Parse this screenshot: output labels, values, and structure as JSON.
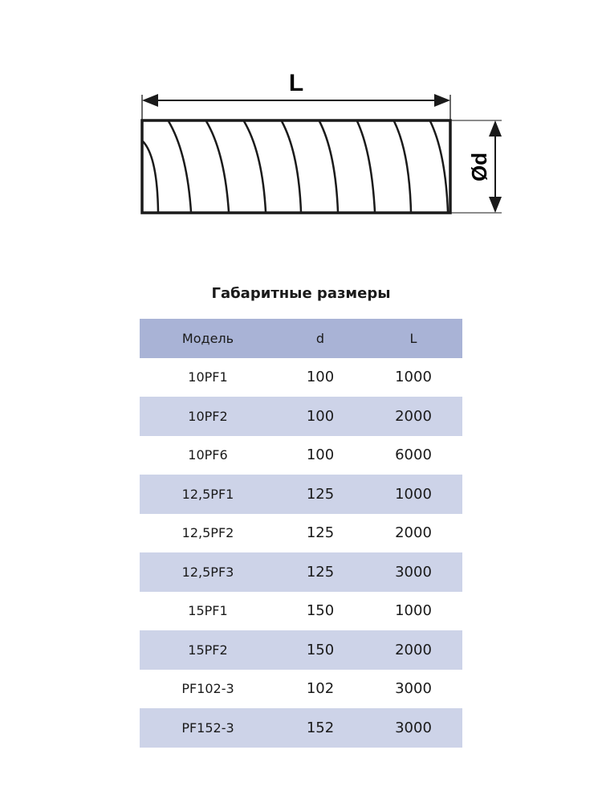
{
  "drawing": {
    "length_label": "L",
    "diameter_label": "Ød"
  },
  "title": "Габаритные размеры",
  "table": {
    "headers": [
      "Модель",
      "d",
      "L"
    ],
    "rows": [
      [
        "10PF1",
        "100",
        "1000"
      ],
      [
        "10PF2",
        "100",
        "2000"
      ],
      [
        "10PF6",
        "100",
        "6000"
      ],
      [
        "12,5PF1",
        "125",
        "1000"
      ],
      [
        "12,5PF2",
        "125",
        "2000"
      ],
      [
        "12,5PF3",
        "125",
        "3000"
      ],
      [
        "15PF1",
        "150",
        "1000"
      ],
      [
        "15PF2",
        "150",
        "2000"
      ],
      [
        "PF102-3",
        "102",
        "3000"
      ],
      [
        "PF152-3",
        "152",
        "3000"
      ]
    ],
    "colors": {
      "header": "#a9b3d6",
      "alt_row": "#cdd3e8"
    }
  }
}
